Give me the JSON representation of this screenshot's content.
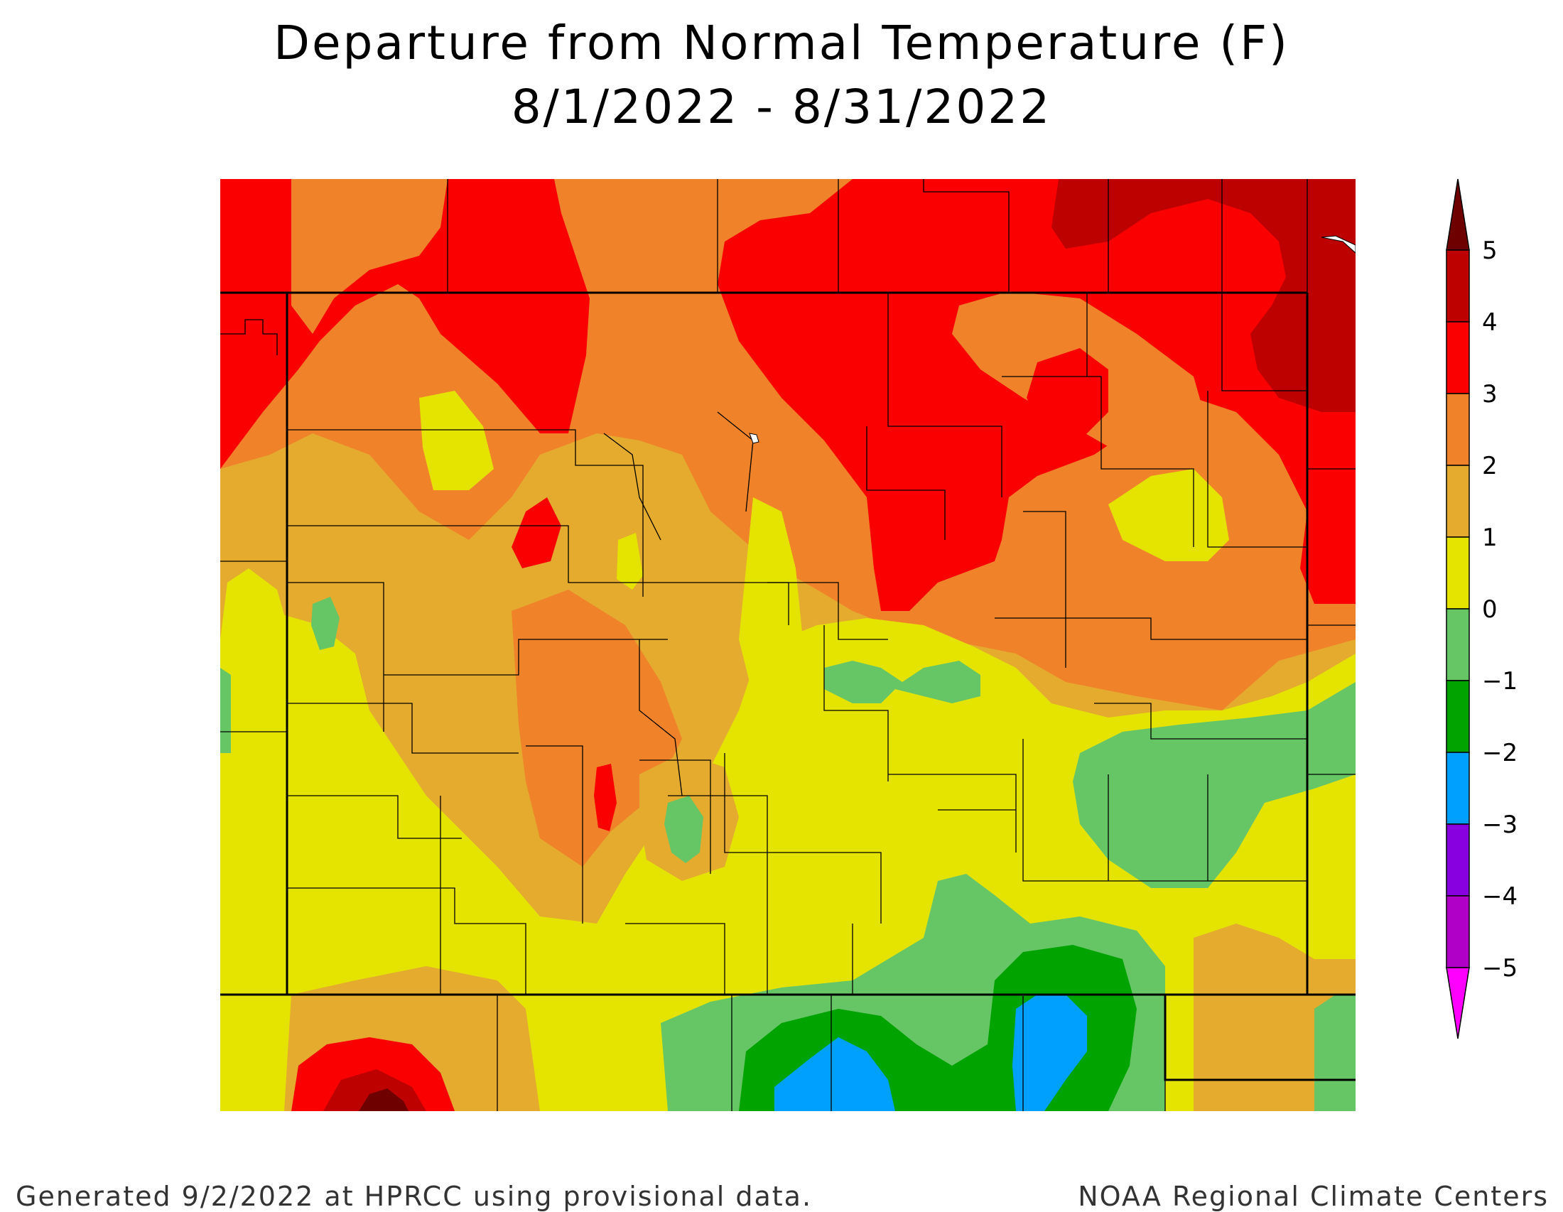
{
  "title": {
    "line1": "Departure from Normal Temperature (F)",
    "line2": "8/1/2022 - 8/31/2022"
  },
  "footer": {
    "left": "Generated 9/2/2022 at HPRCC using provisional data.",
    "right": "NOAA Regional Climate Centers"
  },
  "legend": {
    "labels": [
      "5",
      "4",
      "3",
      "2",
      "1",
      "0",
      "−1",
      "−2",
      "−3",
      "−4",
      "−5"
    ],
    "bins": [
      {
        "range": "above 5",
        "color": "#6f0000"
      },
      {
        "range": "4 to 5",
        "color": "#bd0000"
      },
      {
        "range": "3 to 4",
        "color": "#fb0000"
      },
      {
        "range": "2 to 3",
        "color": "#f0832a"
      },
      {
        "range": "1 to 2",
        "color": "#e4ab2f"
      },
      {
        "range": "0 to 1",
        "color": "#e5e400"
      },
      {
        "range": "-1 to 0",
        "color": "#66c665"
      },
      {
        "range": "-2 to -1",
        "color": "#00a300"
      },
      {
        "range": "-3 to -2",
        "color": "#00a0ff"
      },
      {
        "range": "-4 to -3",
        "color": "#8900e0"
      },
      {
        "range": "-5 to -4",
        "color": "#b000c8"
      },
      {
        "range": "below -5",
        "color": "#ff00ff"
      }
    ]
  },
  "colors": {
    "c_red_dark": "#6f0000",
    "c_red2": "#bd0000",
    "c_red": "#fb0000",
    "c_orange": "#f0832a",
    "c_tan": "#e4ab2f",
    "c_yellow": "#e5e400",
    "c_lgreen": "#66c665",
    "c_green": "#00a300",
    "c_blue": "#00a0ff"
  }
}
